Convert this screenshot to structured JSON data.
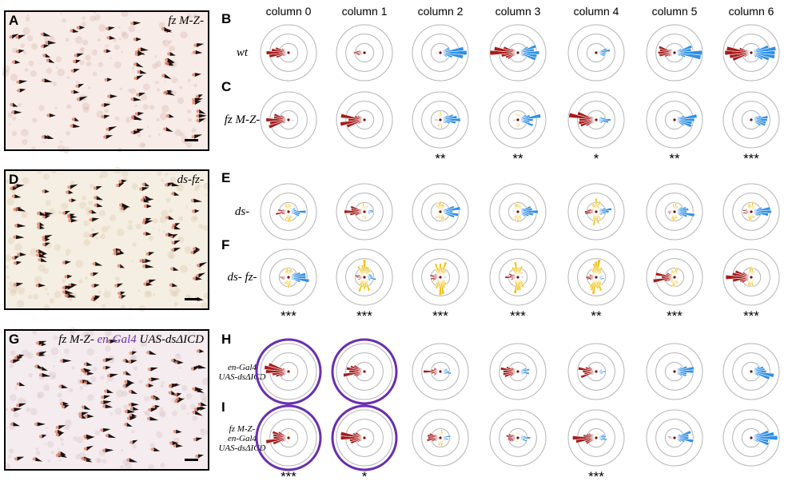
{
  "micrographs": [
    {
      "label": "A",
      "title": "fz M-Z-",
      "bg": "#f8ece8",
      "dot": "#d9b7ad"
    },
    {
      "label": "D",
      "title": "ds-fz-",
      "bg": "#f5eee2",
      "dot": "#ddc8ac"
    },
    {
      "label": "G",
      "title_parts": [
        "fz M-Z- ",
        "en-Gal4",
        " UAS-dsΔICD"
      ],
      "bg": "#f4ecee",
      "dot": "#d8c2c6"
    }
  ],
  "columns": [
    "column 0",
    "column 1",
    "column 2",
    "column 3",
    "column 4",
    "column 5",
    "column 6"
  ],
  "colors": {
    "anterior": "#a61c1c",
    "middle": "#f2c31a",
    "posterior": "#2f8fe8",
    "ring": "#b5b5b5",
    "enGal4_ring": "#6a2fb0"
  },
  "rows": [
    {
      "label": "B",
      "genotype_lines": [
        "wt"
      ],
      "red": [
        0.75,
        0.45,
        0.2,
        0.95,
        0.15,
        0.9,
        0.9
      ],
      "yellow": [
        0.0,
        0.05,
        0.0,
        0.0,
        0.05,
        0.0,
        0.0
      ],
      "blue": [
        0.1,
        0.15,
        0.9,
        0.9,
        0.55,
        0.95,
        1.0
      ],
      "purple_ring": [
        false,
        false,
        false,
        false,
        false,
        false,
        false
      ],
      "stars": [
        "",
        "",
        "",
        "",
        "",
        "",
        ""
      ]
    },
    {
      "label": "C",
      "genotype_lines": [
        "fz M-Z-"
      ],
      "red": [
        0.95,
        0.9,
        0.2,
        0.2,
        0.95,
        0.15,
        0.1
      ],
      "yellow": [
        0.15,
        0.15,
        0.3,
        0.25,
        0.2,
        0.2,
        0.1
      ],
      "blue": [
        0.2,
        0.15,
        0.85,
        0.85,
        0.5,
        0.85,
        0.9
      ],
      "purple_ring": [
        false,
        false,
        false,
        false,
        false,
        false,
        false
      ],
      "stars": [
        "",
        "",
        "**",
        "**",
        "*",
        "**",
        "***"
      ]
    },
    {
      "label": "E",
      "genotype_lines": [
        "ds-"
      ],
      "red": [
        0.45,
        0.7,
        0.15,
        0.2,
        0.4,
        0.3,
        0.3
      ],
      "yellow": [
        0.35,
        0.3,
        0.4,
        0.4,
        0.45,
        0.3,
        0.35
      ],
      "blue": [
        0.6,
        0.4,
        0.7,
        0.7,
        0.55,
        0.7,
        0.7
      ],
      "purple_ring": [
        false,
        false,
        false,
        false,
        false,
        false,
        false
      ],
      "stars": [
        "",
        "",
        "",
        "",
        "",
        "",
        ""
      ]
    },
    {
      "label": "F",
      "genotype_lines": [
        "ds- fz-"
      ],
      "red": [
        0.3,
        0.35,
        0.45,
        0.45,
        0.45,
        0.75,
        0.9
      ],
      "yellow": [
        0.4,
        0.6,
        0.6,
        0.55,
        0.6,
        0.35,
        0.35
      ],
      "blue": [
        0.75,
        0.5,
        0.2,
        0.25,
        0.3,
        0.15,
        0.1
      ],
      "purple_ring": [
        false,
        false,
        false,
        false,
        false,
        false,
        false
      ],
      "stars": [
        "***",
        "***",
        "***",
        "***",
        "**",
        "***",
        "***"
      ]
    },
    {
      "label": "H",
      "genotype_lines": [
        "en-Gal4",
        "UAS-dsΔICD"
      ],
      "red": [
        1.0,
        0.9,
        0.6,
        0.65,
        0.8,
        0.1,
        0.05
      ],
      "yellow": [
        0.05,
        0.05,
        0.15,
        0.1,
        0.15,
        0.05,
        0.0
      ],
      "blue": [
        0.05,
        0.05,
        0.4,
        0.5,
        0.35,
        0.85,
        0.9
      ],
      "purple_ring": [
        true,
        true,
        false,
        false,
        false,
        false,
        false
      ],
      "stars": [
        "",
        "",
        "",
        "",
        "",
        "",
        ""
      ]
    },
    {
      "label": "I",
      "genotype_lines": [
        "fz M-Z-",
        "en-Gal4",
        "UAS-dsΔICD"
      ],
      "red": [
        0.9,
        0.85,
        0.55,
        0.6,
        0.85,
        0.25,
        0.05
      ],
      "yellow": [
        0.2,
        0.15,
        0.3,
        0.2,
        0.2,
        0.1,
        0.05
      ],
      "blue": [
        0.1,
        0.1,
        0.4,
        0.45,
        0.4,
        0.85,
        0.95
      ],
      "purple_ring": [
        true,
        true,
        false,
        false,
        false,
        false,
        false
      ],
      "stars": [
        "***",
        "*",
        "",
        "",
        "***",
        "",
        ""
      ]
    }
  ]
}
